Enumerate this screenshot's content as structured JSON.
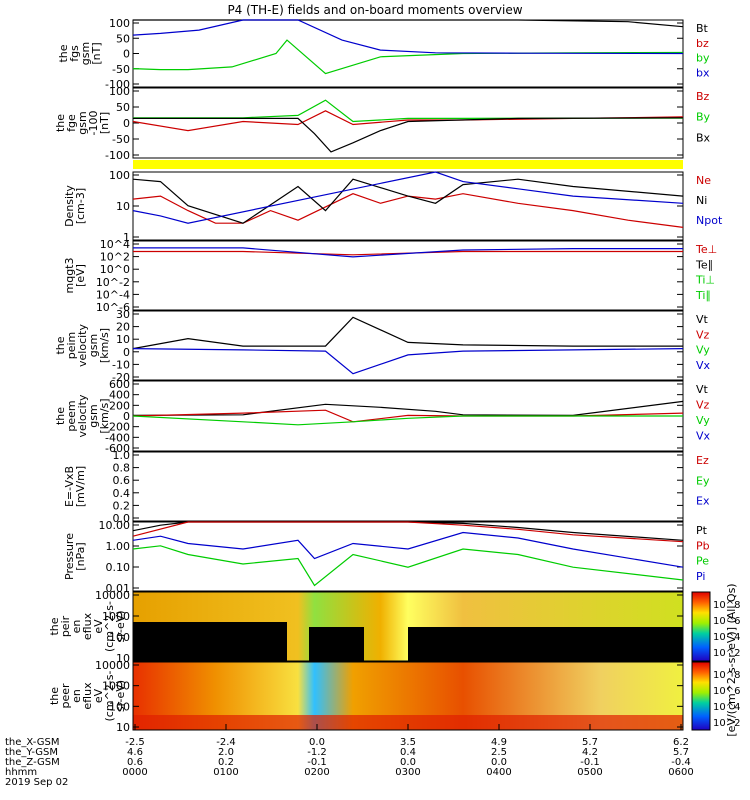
{
  "title": "P4 (TH-E) fields and on-board moments overview",
  "date_label": "2019 Sep 02",
  "colors": {
    "black": "#000000",
    "red": "#cc0000",
    "green": "#00cc00",
    "blue": "#0000cc",
    "yellow": "#ffff00"
  },
  "chart_data": [
    {
      "type": "line",
      "panel": "fgs",
      "ylabel": [
        "the",
        "fgs",
        "gsm",
        "[nT]"
      ],
      "yticks": [
        "100",
        "50",
        "0",
        "-50",
        "-100"
      ],
      "ylim": [
        -100,
        100
      ],
      "legend": [
        {
          "name": "Bt",
          "color": "black"
        },
        {
          "name": "bz",
          "color": "red"
        },
        {
          "name": "by",
          "color": "green"
        },
        {
          "name": "bx",
          "color": "blue"
        }
      ],
      "series": [
        {
          "name": "Bt",
          "color": "black",
          "x": [
            0,
            0.35,
            0.7,
            0.9,
            1.0
          ],
          "y": [
            100,
            100,
            100,
            95,
            80
          ]
        },
        {
          "name": "by",
          "color": "green",
          "x": [
            0,
            0.05,
            0.1,
            0.18,
            0.26,
            0.28,
            0.35,
            0.45,
            0.6,
            0.8,
            1.0
          ],
          "y": [
            -45,
            -48,
            -48,
            -40,
            0,
            40,
            -60,
            -10,
            0,
            2,
            3
          ]
        },
        {
          "name": "bx",
          "color": "blue",
          "x": [
            0,
            0.05,
            0.12,
            0.2,
            0.3,
            0.38,
            0.45,
            0.55,
            0.7,
            1.0
          ],
          "y": [
            55,
            60,
            70,
            100,
            100,
            40,
            10,
            2,
            1,
            0
          ]
        }
      ]
    },
    {
      "type": "line",
      "panel": "fge",
      "ylabel": [
        "the",
        "fge",
        "gsm",
        "-100",
        "[nT]"
      ],
      "yticks": [
        "100",
        "50",
        "0",
        "-50",
        "-100"
      ],
      "ylim": [
        -130,
        100
      ],
      "legend": [
        {
          "name": "Bz",
          "color": "red"
        },
        {
          "name": "By",
          "color": "green"
        },
        {
          "name": "Bx",
          "color": "black"
        }
      ],
      "series": [
        {
          "name": "Bz",
          "color": "red",
          "x": [
            0,
            0.1,
            0.2,
            0.3,
            0.35,
            0.4,
            0.5,
            0.6,
            0.8,
            1.0
          ],
          "y": [
            -10,
            -40,
            -10,
            -20,
            25,
            -20,
            -5,
            -5,
            0,
            5
          ]
        },
        {
          "name": "By",
          "color": "green",
          "x": [
            0,
            0.2,
            0.3,
            0.35,
            0.4,
            0.5,
            0.6,
            0.8,
            1.0
          ],
          "y": [
            2,
            2,
            10,
            60,
            -10,
            0,
            0,
            1,
            1
          ]
        },
        {
          "name": "Bx",
          "color": "black",
          "x": [
            0,
            0.3,
            0.33,
            0.36,
            0.4,
            0.45,
            0.5,
            0.7,
            1.0
          ],
          "y": [
            0,
            0,
            -50,
            -110,
            -80,
            -40,
            -10,
            0,
            2
          ]
        }
      ]
    },
    {
      "type": "line",
      "panel": "density",
      "ylabel": [
        "Density",
        "[cm-3]"
      ],
      "yticks": [
        "100",
        "10",
        "1"
      ],
      "ylim_log": [
        0.3,
        200
      ],
      "legend": [
        {
          "name": "Ne",
          "color": "red"
        },
        {
          "name": "Ni",
          "color": "black"
        },
        {
          "name": "Npot",
          "color": "blue"
        }
      ],
      "series": [
        {
          "name": "Ne",
          "color": "red",
          "x": [
            0,
            0.05,
            0.1,
            0.15,
            0.2,
            0.25,
            0.3,
            0.4,
            0.45,
            0.5,
            0.55,
            0.6,
            0.7,
            0.8,
            0.9,
            1.0
          ],
          "y": [
            15,
            20,
            5,
            1.5,
            1.5,
            5,
            2,
            25,
            10,
            20,
            15,
            25,
            10,
            5,
            2,
            1
          ]
        },
        {
          "name": "Ni",
          "color": "black",
          "x": [
            0,
            0.05,
            0.1,
            0.2,
            0.3,
            0.35,
            0.4,
            0.5,
            0.55,
            0.6,
            0.7,
            0.8,
            1.0
          ],
          "y": [
            100,
            80,
            8,
            1.5,
            50,
            5,
            100,
            20,
            10,
            60,
            100,
            50,
            20
          ]
        },
        {
          "name": "Npot",
          "color": "blue",
          "x": [
            0,
            0.05,
            0.1,
            0.55,
            0.6,
            0.7,
            0.8,
            1.0
          ],
          "y": [
            5,
            3,
            1.5,
            200,
            80,
            40,
            20,
            10
          ]
        }
      ]
    },
    {
      "type": "line",
      "panel": "temperature",
      "ylabel": [
        "mqgt3",
        "[eV]"
      ],
      "yticks": [
        "10^4",
        "10^2",
        "10^0",
        "10^-2",
        "10^-4",
        "10^-6"
      ],
      "ylim_log": [
        1e-06,
        10000
      ],
      "legend": [
        {
          "name": "Te⊥",
          "color": "red"
        },
        {
          "name": "Te∥",
          "color": "black"
        },
        {
          "name": "Ti⊥",
          "color": "green"
        },
        {
          "name": "Ti∥",
          "color": "green"
        }
      ],
      "series": [
        {
          "name": "Te⊥",
          "color": "red",
          "x": [
            0,
            0.2,
            0.4,
            0.6,
            0.8,
            1.0
          ],
          "y": [
            300,
            300,
            100,
            300,
            300,
            300
          ]
        },
        {
          "name": "Ti⊥",
          "color": "blue",
          "x": [
            0,
            0.2,
            0.4,
            0.6,
            0.8,
            1.0
          ],
          "y": [
            1000,
            1000,
            50,
            500,
            800,
            800
          ]
        }
      ]
    },
    {
      "type": "line",
      "panel": "peim velocity",
      "ylabel": [
        "the",
        "peim",
        "velocity",
        "gsm",
        "[km/s]"
      ],
      "yticks": [
        "30",
        "20",
        "10",
        "0",
        "-10",
        "-20"
      ],
      "ylim": [
        -25,
        30
      ],
      "legend": [
        {
          "name": "Vt",
          "color": "black"
        },
        {
          "name": "Vz",
          "color": "red"
        },
        {
          "name": "Vy",
          "color": "green"
        },
        {
          "name": "Vx",
          "color": "blue"
        }
      ],
      "series": [
        {
          "name": "Vt",
          "color": "black",
          "x": [
            0,
            0.1,
            0.2,
            0.35,
            0.4,
            0.5,
            0.6,
            0.8,
            1.0
          ],
          "y": [
            0,
            8,
            2,
            2,
            25,
            5,
            3,
            2,
            2
          ]
        },
        {
          "name": "Vx",
          "color": "blue",
          "x": [
            0,
            0.2,
            0.35,
            0.4,
            0.5,
            0.6,
            0.8,
            1.0
          ],
          "y": [
            0,
            -1,
            -2,
            -20,
            -5,
            -2,
            -1,
            0
          ]
        }
      ]
    },
    {
      "type": "line",
      "panel": "peem velocity",
      "ylabel": [
        "the",
        "peem",
        "velocity",
        "gsm",
        "[km/s]"
      ],
      "yticks": [
        "600",
        "400",
        "200",
        "0",
        "-200",
        "-400",
        "-600"
      ],
      "ylim": [
        -600,
        600
      ],
      "legend": [
        {
          "name": "Vt",
          "color": "black"
        },
        {
          "name": "Vz",
          "color": "red"
        },
        {
          "name": "Vy",
          "color": "green"
        },
        {
          "name": "Vx",
          "color": "blue"
        }
      ],
      "series": [
        {
          "name": "Vt",
          "color": "black",
          "x": [
            0,
            0.2,
            0.35,
            0.45,
            0.55,
            0.6,
            0.8,
            1.0
          ],
          "y": [
            10,
            20,
            200,
            150,
            80,
            20,
            10,
            250
          ]
        },
        {
          "name": "Vz",
          "color": "red",
          "x": [
            0,
            0.2,
            0.35,
            0.4,
            0.5,
            0.6,
            0.8,
            1.0
          ],
          "y": [
            0,
            50,
            100,
            -100,
            10,
            0,
            0,
            50
          ]
        },
        {
          "name": "Vy",
          "color": "green",
          "x": [
            0,
            0.2,
            0.3,
            0.4,
            0.5,
            0.6,
            0.8,
            1.0
          ],
          "y": [
            0,
            -100,
            -150,
            -100,
            -40,
            0,
            0,
            0
          ]
        }
      ]
    },
    {
      "type": "line",
      "panel": "E field",
      "ylabel": [
        "E=-VxB",
        "[mV/m]"
      ],
      "yticks": [
        "1.0",
        "0.8",
        "0.6",
        "0.4",
        "0.2",
        "0.0"
      ],
      "ylim": [
        0,
        1
      ],
      "legend": [
        {
          "name": "Ez",
          "color": "red"
        },
        {
          "name": "Ey",
          "color": "green"
        },
        {
          "name": "Ex",
          "color": "blue"
        }
      ],
      "series": []
    },
    {
      "type": "line",
      "panel": "pressure",
      "ylabel": [
        "Pressure",
        "[nPa]"
      ],
      "yticks": [
        "10.00",
        "1.00",
        "0.10",
        "0.01"
      ],
      "ylim_log": [
        0.005,
        30
      ],
      "legend": [
        {
          "name": "Pt",
          "color": "black"
        },
        {
          "name": "Pb",
          "color": "red"
        },
        {
          "name": "Pe",
          "color": "green"
        },
        {
          "name": "Pi",
          "color": "blue"
        }
      ],
      "series": [
        {
          "name": "Pt",
          "color": "black",
          "x": [
            0,
            0.05,
            0.1,
            0.2,
            0.3,
            0.35,
            0.4,
            0.5,
            0.6,
            0.7,
            0.8,
            1.0
          ],
          "y": [
            10,
            20,
            30,
            30,
            30,
            30,
            30,
            30,
            25,
            15,
            8,
            3
          ]
        },
        {
          "name": "Pb",
          "color": "red",
          "x": [
            0,
            0.1,
            0.2,
            0.3,
            0.5,
            0.6,
            0.7,
            0.8,
            1.0
          ],
          "y": [
            5,
            30,
            30,
            30,
            30,
            20,
            12,
            6,
            2.5
          ]
        },
        {
          "name": "Pe",
          "color": "green",
          "x": [
            0,
            0.05,
            0.1,
            0.2,
            0.3,
            0.33,
            0.4,
            0.5,
            0.6,
            0.7,
            0.8,
            1.0
          ],
          "y": [
            1,
            1.5,
            0.5,
            0.15,
            0.3,
            0.01,
            0.5,
            0.1,
            1,
            0.5,
            0.1,
            0.02
          ]
        },
        {
          "name": "Pi",
          "color": "blue",
          "x": [
            0,
            0.05,
            0.1,
            0.2,
            0.3,
            0.33,
            0.4,
            0.5,
            0.6,
            0.7,
            0.8,
            1.0
          ],
          "y": [
            3,
            5,
            2,
            1,
            3,
            0.3,
            2,
            1,
            8,
            4,
            1,
            0.1
          ]
        }
      ]
    },
    {
      "type": "heatmap",
      "panel": "peir",
      "ylabel": [
        "the",
        "peir",
        "en",
        "eflux",
        "eV",
        "(cm^2-s-",
        "sr-eV)"
      ],
      "yticks": [
        "10000",
        "1000",
        "100",
        "10"
      ]
    },
    {
      "type": "heatmap",
      "panel": "peer",
      "ylabel": [
        "the",
        "peer",
        "en",
        "eflux",
        "eV",
        "(cm^2-s-",
        "sr-eV)"
      ],
      "yticks": [
        "10000",
        "1000",
        "100",
        "10"
      ]
    }
  ],
  "colorbar": {
    "label": "[eV/(cm^2-s-sr-eV)]  (All Qs)",
    "ticks_top": [
      "10^8",
      "10^6",
      "10^4",
      "10^2"
    ],
    "ticks_bottom": [
      "10^8",
      "10^6",
      "10^4",
      "10^2"
    ]
  },
  "x_axis": {
    "rows": [
      {
        "label": "the_X-GSM",
        "values": [
          "-2.5",
          "-2.4",
          "0.0",
          "3.5",
          "4.9",
          "5.7",
          "6.2"
        ]
      },
      {
        "label": "the_Y-GSM",
        "values": [
          "4.6",
          "2.0",
          "-1.2",
          "0.4",
          "2.5",
          "4.2",
          "5.7"
        ]
      },
      {
        "label": "the_Z-GSM",
        "values": [
          "0.6",
          "0.2",
          "-0.1",
          "0.0",
          "0.0",
          "-0.1",
          "-0.4"
        ]
      },
      {
        "label": "hhmm",
        "values": [
          "0000",
          "0100",
          "0200",
          "0300",
          "0400",
          "0500",
          "0600"
        ]
      }
    ]
  }
}
